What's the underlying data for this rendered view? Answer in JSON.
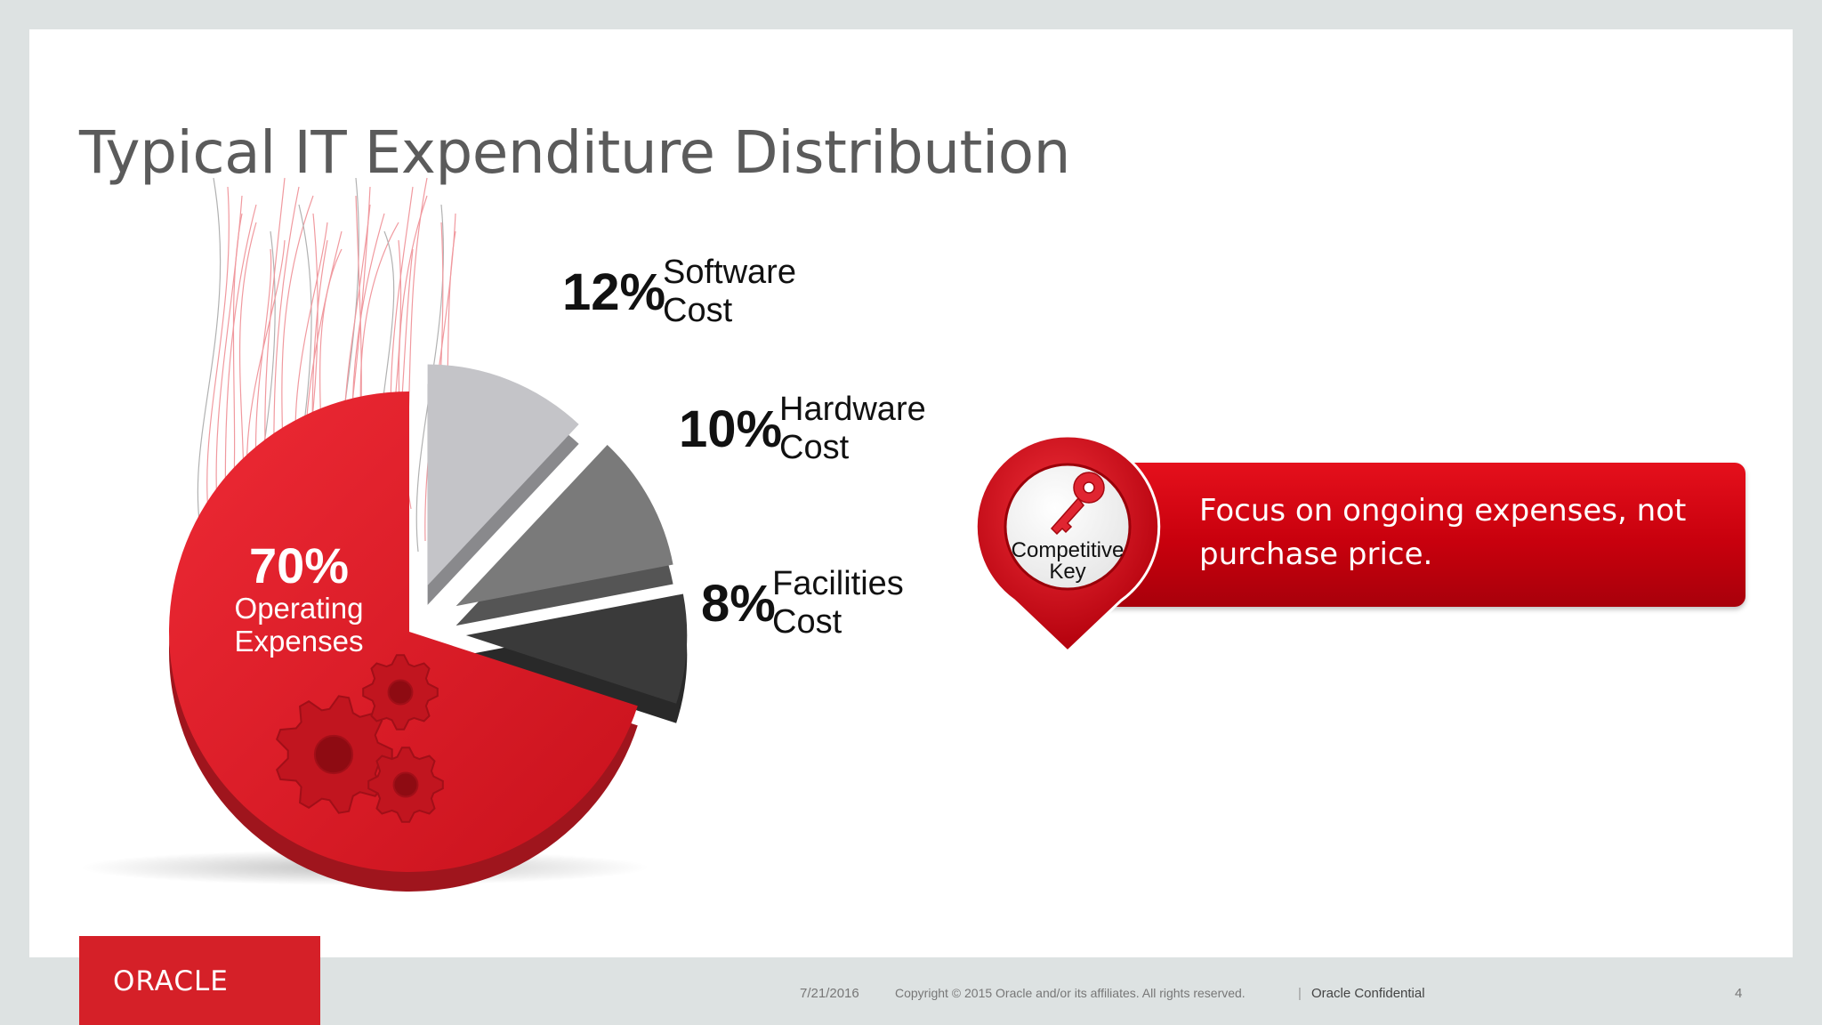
{
  "slide": {
    "title": "Typical IT Expenditure Distribution"
  },
  "chart_data": {
    "type": "pie",
    "title": "",
    "slices": [
      {
        "label": "Operating Expenses",
        "percent_label": "70%",
        "value": 70,
        "color": "#e31e2a"
      },
      {
        "label": "Software Cost",
        "label_lines": [
          "Software",
          "Cost"
        ],
        "percent_label": "12%",
        "value": 12,
        "color": "#c4c4c8"
      },
      {
        "label": "Hardware Cost",
        "label_lines": [
          "Hardware",
          "Cost"
        ],
        "percent_label": "10%",
        "value": 10,
        "color": "#7a7a7a"
      },
      {
        "label": "Facilities Cost",
        "label_lines": [
          "Facilities",
          "Cost"
        ],
        "percent_label": "8%",
        "value": 8,
        "color": "#3a3a3a"
      }
    ],
    "big_slice_label_lines": [
      "Operating",
      "Expenses"
    ]
  },
  "callout": {
    "badge_lines": [
      "Competitive",
      "Key"
    ],
    "text": "Focus on ongoing expenses, not purchase price.",
    "icon": "key-icon",
    "color": "#d0000f"
  },
  "footer": {
    "logo": "ORACLE",
    "date": "7/21/2016",
    "copyright": "Copyright © 2015 Oracle and/or its affiliates. All rights reserved.",
    "separator": "|",
    "confidential": "Oracle Confidential",
    "page_number": "4"
  }
}
